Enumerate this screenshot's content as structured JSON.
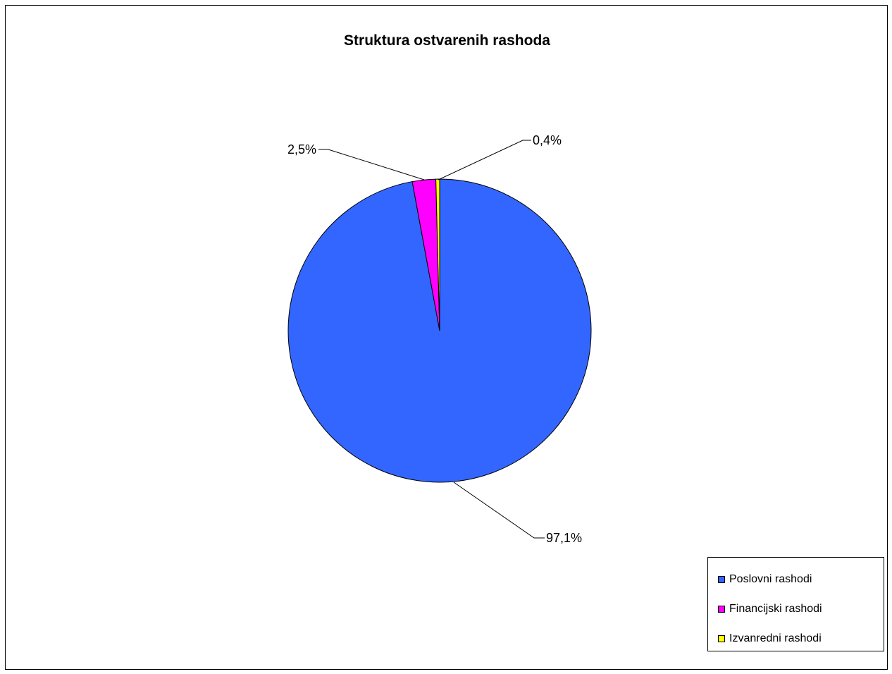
{
  "chart_data": {
    "type": "pie",
    "title": "Struktura ostvarenih rashoda",
    "slices": [
      {
        "name": "Poslovni rashodi",
        "value": 97.1,
        "label": "97,1%",
        "color": "#3366FF"
      },
      {
        "name": "Financijski rashodi",
        "value": 2.5,
        "label": "2,5%",
        "color": "#FF00FF"
      },
      {
        "name": "Izvanredni rashodi",
        "value": 0.4,
        "label": "0,4%",
        "color": "#FFFF00"
      }
    ],
    "legend_position": "bottom-right"
  }
}
